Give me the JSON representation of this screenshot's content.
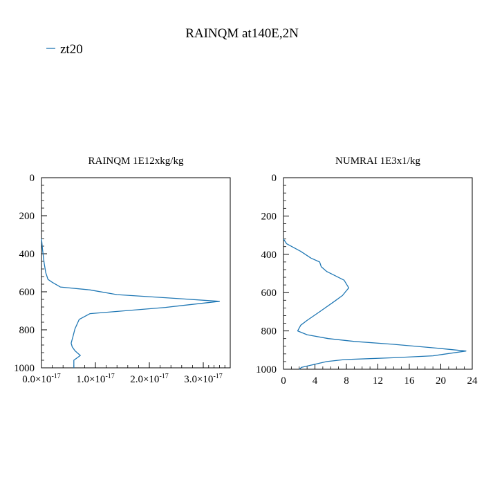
{
  "figure": {
    "title": "RAINQM at140E,2N",
    "legend": {
      "label": "zt20",
      "color": "#1f77b4",
      "placement": "top-left"
    }
  },
  "chart_data": [
    {
      "type": "line",
      "title": "RAINQM  1E12xkg/kg",
      "xlabel": "",
      "ylabel": "",
      "xlim": [
        0,
        3.5e-17
      ],
      "ylim": [
        1000,
        0
      ],
      "y_inverted": true,
      "grid": false,
      "xticks": [
        {
          "value": 0,
          "mant": "0.0",
          "exp": "-17"
        },
        {
          "value": 1e-17,
          "mant": "1.0",
          "exp": "-17"
        },
        {
          "value": 2e-17,
          "mant": "2.0",
          "exp": "-17"
        },
        {
          "value": 3e-17,
          "mant": "3.0",
          "exp": "-17"
        }
      ],
      "yticks": [
        0,
        200,
        400,
        600,
        800,
        1000
      ],
      "series": [
        {
          "name": "zt20",
          "color": "#1f77b4",
          "points": [
            [
              0,
              320
            ],
            [
              2e-19,
              380
            ],
            [
              5e-19,
              450
            ],
            [
              8e-19,
              500
            ],
            [
              1.2e-18,
              535
            ],
            [
              2e-18,
              550
            ],
            [
              3.5e-18,
              575
            ],
            [
              9e-18,
              590
            ],
            [
              1.4e-17,
              615
            ],
            [
              2.5e-17,
              635
            ],
            [
              3.3e-17,
              650
            ],
            [
              2.3e-17,
              682
            ],
            [
              9e-18,
              715
            ],
            [
              7e-18,
              745
            ],
            [
              6.2e-18,
              795
            ],
            [
              5.8e-18,
              840
            ],
            [
              5.5e-18,
              870
            ],
            [
              5.7e-18,
              890
            ],
            [
              6.2e-18,
              910
            ],
            [
              7.2e-18,
              935
            ],
            [
              6e-18,
              960
            ],
            [
              6e-18,
              985
            ],
            [
              6e-18,
              1000
            ]
          ]
        }
      ]
    },
    {
      "type": "line",
      "title": "NUMRAI  1E3x1/kg",
      "xlabel": "",
      "ylabel": "",
      "xlim": [
        0,
        24
      ],
      "ylim": [
        1000,
        0
      ],
      "y_inverted": true,
      "grid": false,
      "xticks": [
        {
          "value": 0,
          "label": "0"
        },
        {
          "value": 4,
          "label": "4"
        },
        {
          "value": 8,
          "label": "8"
        },
        {
          "value": 12,
          "label": "12"
        },
        {
          "value": 16,
          "label": "16"
        },
        {
          "value": 20,
          "label": "20"
        },
        {
          "value": 24,
          "label": "24"
        }
      ],
      "yticks": [
        0,
        200,
        400,
        600,
        800,
        1000
      ],
      "series": [
        {
          "name": "zt20",
          "color": "#1f77b4",
          "points": [
            [
              0,
              320
            ],
            [
              0.4,
              345
            ],
            [
              2.2,
              385
            ],
            [
              3.5,
              420
            ],
            [
              4.6,
              440
            ],
            [
              4.8,
              465
            ],
            [
              5.5,
              490
            ],
            [
              6.5,
              510
            ],
            [
              7.7,
              535
            ],
            [
              8.3,
              575
            ],
            [
              7.5,
              615
            ],
            [
              6.5,
              645
            ],
            [
              4.6,
              700
            ],
            [
              3.0,
              745
            ],
            [
              2.2,
              770
            ],
            [
              1.8,
              800
            ],
            [
              3.0,
              820
            ],
            [
              5.7,
              840
            ],
            [
              9.0,
              855
            ],
            [
              14.0,
              870
            ],
            [
              19.5,
              890
            ],
            [
              23.2,
              905
            ],
            [
              19.0,
              930
            ],
            [
              14.0,
              940
            ],
            [
              7.7,
              950
            ],
            [
              5.5,
              960
            ],
            [
              2.3,
              990
            ],
            [
              2.0,
              1000
            ]
          ]
        }
      ]
    }
  ]
}
